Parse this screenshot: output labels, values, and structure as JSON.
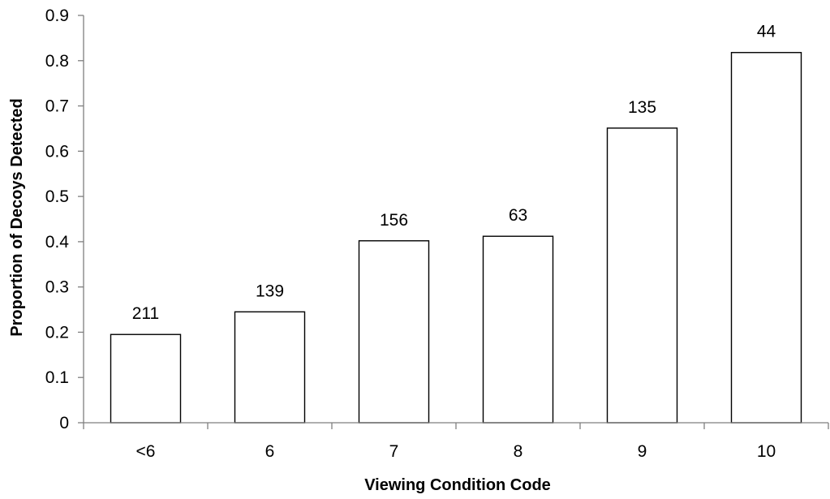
{
  "chart_data": {
    "type": "bar",
    "title": "",
    "xlabel": "Viewing Condition Code",
    "ylabel": "Proportion of Decoys Detected",
    "categories": [
      "<6",
      "6",
      "7",
      "8",
      "9",
      "10"
    ],
    "values": [
      0.195,
      0.245,
      0.402,
      0.412,
      0.651,
      0.818
    ],
    "data_labels": [
      "211",
      "139",
      "156",
      "63",
      "135",
      "44"
    ],
    "yticks": [
      "0",
      "0.1",
      "0.2",
      "0.3",
      "0.4",
      "0.5",
      "0.6",
      "0.7",
      "0.8",
      "0.9"
    ],
    "ylim": [
      0,
      0.9
    ],
    "grid": false,
    "legend": "none",
    "colors": {
      "bar_fill": "#ffffff",
      "bar_stroke": "#000000",
      "axis": "#7f7f7f"
    }
  }
}
